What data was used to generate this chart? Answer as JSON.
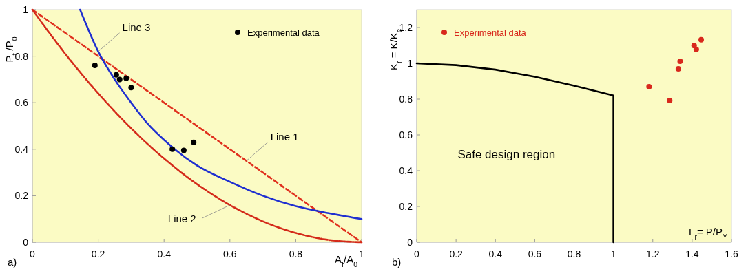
{
  "chart_data": [
    {
      "type": "line",
      "title": "a)",
      "xlabel": "A$_{f}$/A$_{0}$",
      "ylabel": "P$_{f}$ /P$_{0}$",
      "xlim": [
        0,
        1
      ],
      "ylim": [
        0,
        1
      ],
      "xticks": [
        0,
        0.2,
        0.4,
        0.6,
        0.8,
        1
      ],
      "yticks": [
        0,
        0.2,
        0.4,
        0.6,
        0.8,
        1
      ],
      "grid": false,
      "legend": "top right",
      "series": [
        {
          "color": "#e0301e",
          "line_style": "dashed",
          "x": [
            0,
            1
          ],
          "values": [
            1,
            0
          ]
        },
        {
          "color": "#d42a1a",
          "line_style": "dotted",
          "x": [
            0,
            0.1,
            0.2,
            0.3,
            0.4,
            0.5,
            0.6,
            0.7,
            0.8,
            0.9,
            1
          ],
          "values": [
            1,
            0.81,
            0.64,
            0.49,
            0.36,
            0.25,
            0.16,
            0.09,
            0.04,
            0.01,
            0
          ]
        },
        {
          "color": "#1f2fd0",
          "line_style": "solid",
          "x": [
            0.145,
            0.2,
            0.25,
            0.3,
            0.35,
            0.4,
            0.5,
            0.6,
            0.7,
            0.8,
            0.9,
            1
          ],
          "values": [
            1,
            0.82,
            0.7,
            0.6,
            0.51,
            0.44,
            0.33,
            0.26,
            0.2,
            0.155,
            0.125,
            0.1
          ]
        },
        {
          "type": "scatter",
          "name": "Experimental data",
          "color": "#000000",
          "marker": "circle",
          "x": [
            0.19,
            0.255,
            0.265,
            0.285,
            0.3,
            0.425,
            0.46,
            0.49
          ],
          "values": [
            0.76,
            0.72,
            0.7,
            0.705,
            0.665,
            0.4,
            0.395,
            0.43
          ]
        }
      ],
      "annotations": [
        {
          "text": "Line 3",
          "x": 0.2,
          "y": 0.82
        },
        {
          "text": "Line 1",
          "x": 0.65,
          "y": 0.35
        },
        {
          "text": "Line 2",
          "x": 0.6,
          "y": 0.16
        }
      ]
    },
    {
      "type": "line",
      "title": "b)",
      "xlabel": "L$_{r}$= P/P$_{Y}$",
      "ylabel": "K$_{r}$ = K/K$_{c}$",
      "xlim": [
        0,
        1.6
      ],
      "ylim": [
        0,
        1.3
      ],
      "xticks": [
        0,
        0.2,
        0.4,
        0.6,
        0.8,
        1,
        1.2,
        1.4,
        1.6
      ],
      "yticks": [
        0,
        0.2,
        0.4,
        0.6,
        0.8,
        1,
        1.2
      ],
      "grid": false,
      "legend": "top left",
      "series": [
        {
          "color": "#000000",
          "line_style": "solid",
          "x": [
            0,
            0.2,
            0.4,
            0.6,
            0.8,
            1,
            1
          ],
          "values": [
            1,
            0.99,
            0.965,
            0.925,
            0.875,
            0.82,
            0
          ]
        },
        {
          "type": "scatter",
          "name": "Experimental data",
          "color": "#d8281c",
          "marker": "circle",
          "x": [
            1.181,
            1.286,
            1.33,
            1.339,
            1.41,
            1.421,
            1.446
          ],
          "values": [
            0.869,
            0.792,
            0.969,
            1.012,
            1.099,
            1.078,
            1.132
          ]
        }
      ],
      "annotations": [
        "Safe design region"
      ]
    }
  ]
}
